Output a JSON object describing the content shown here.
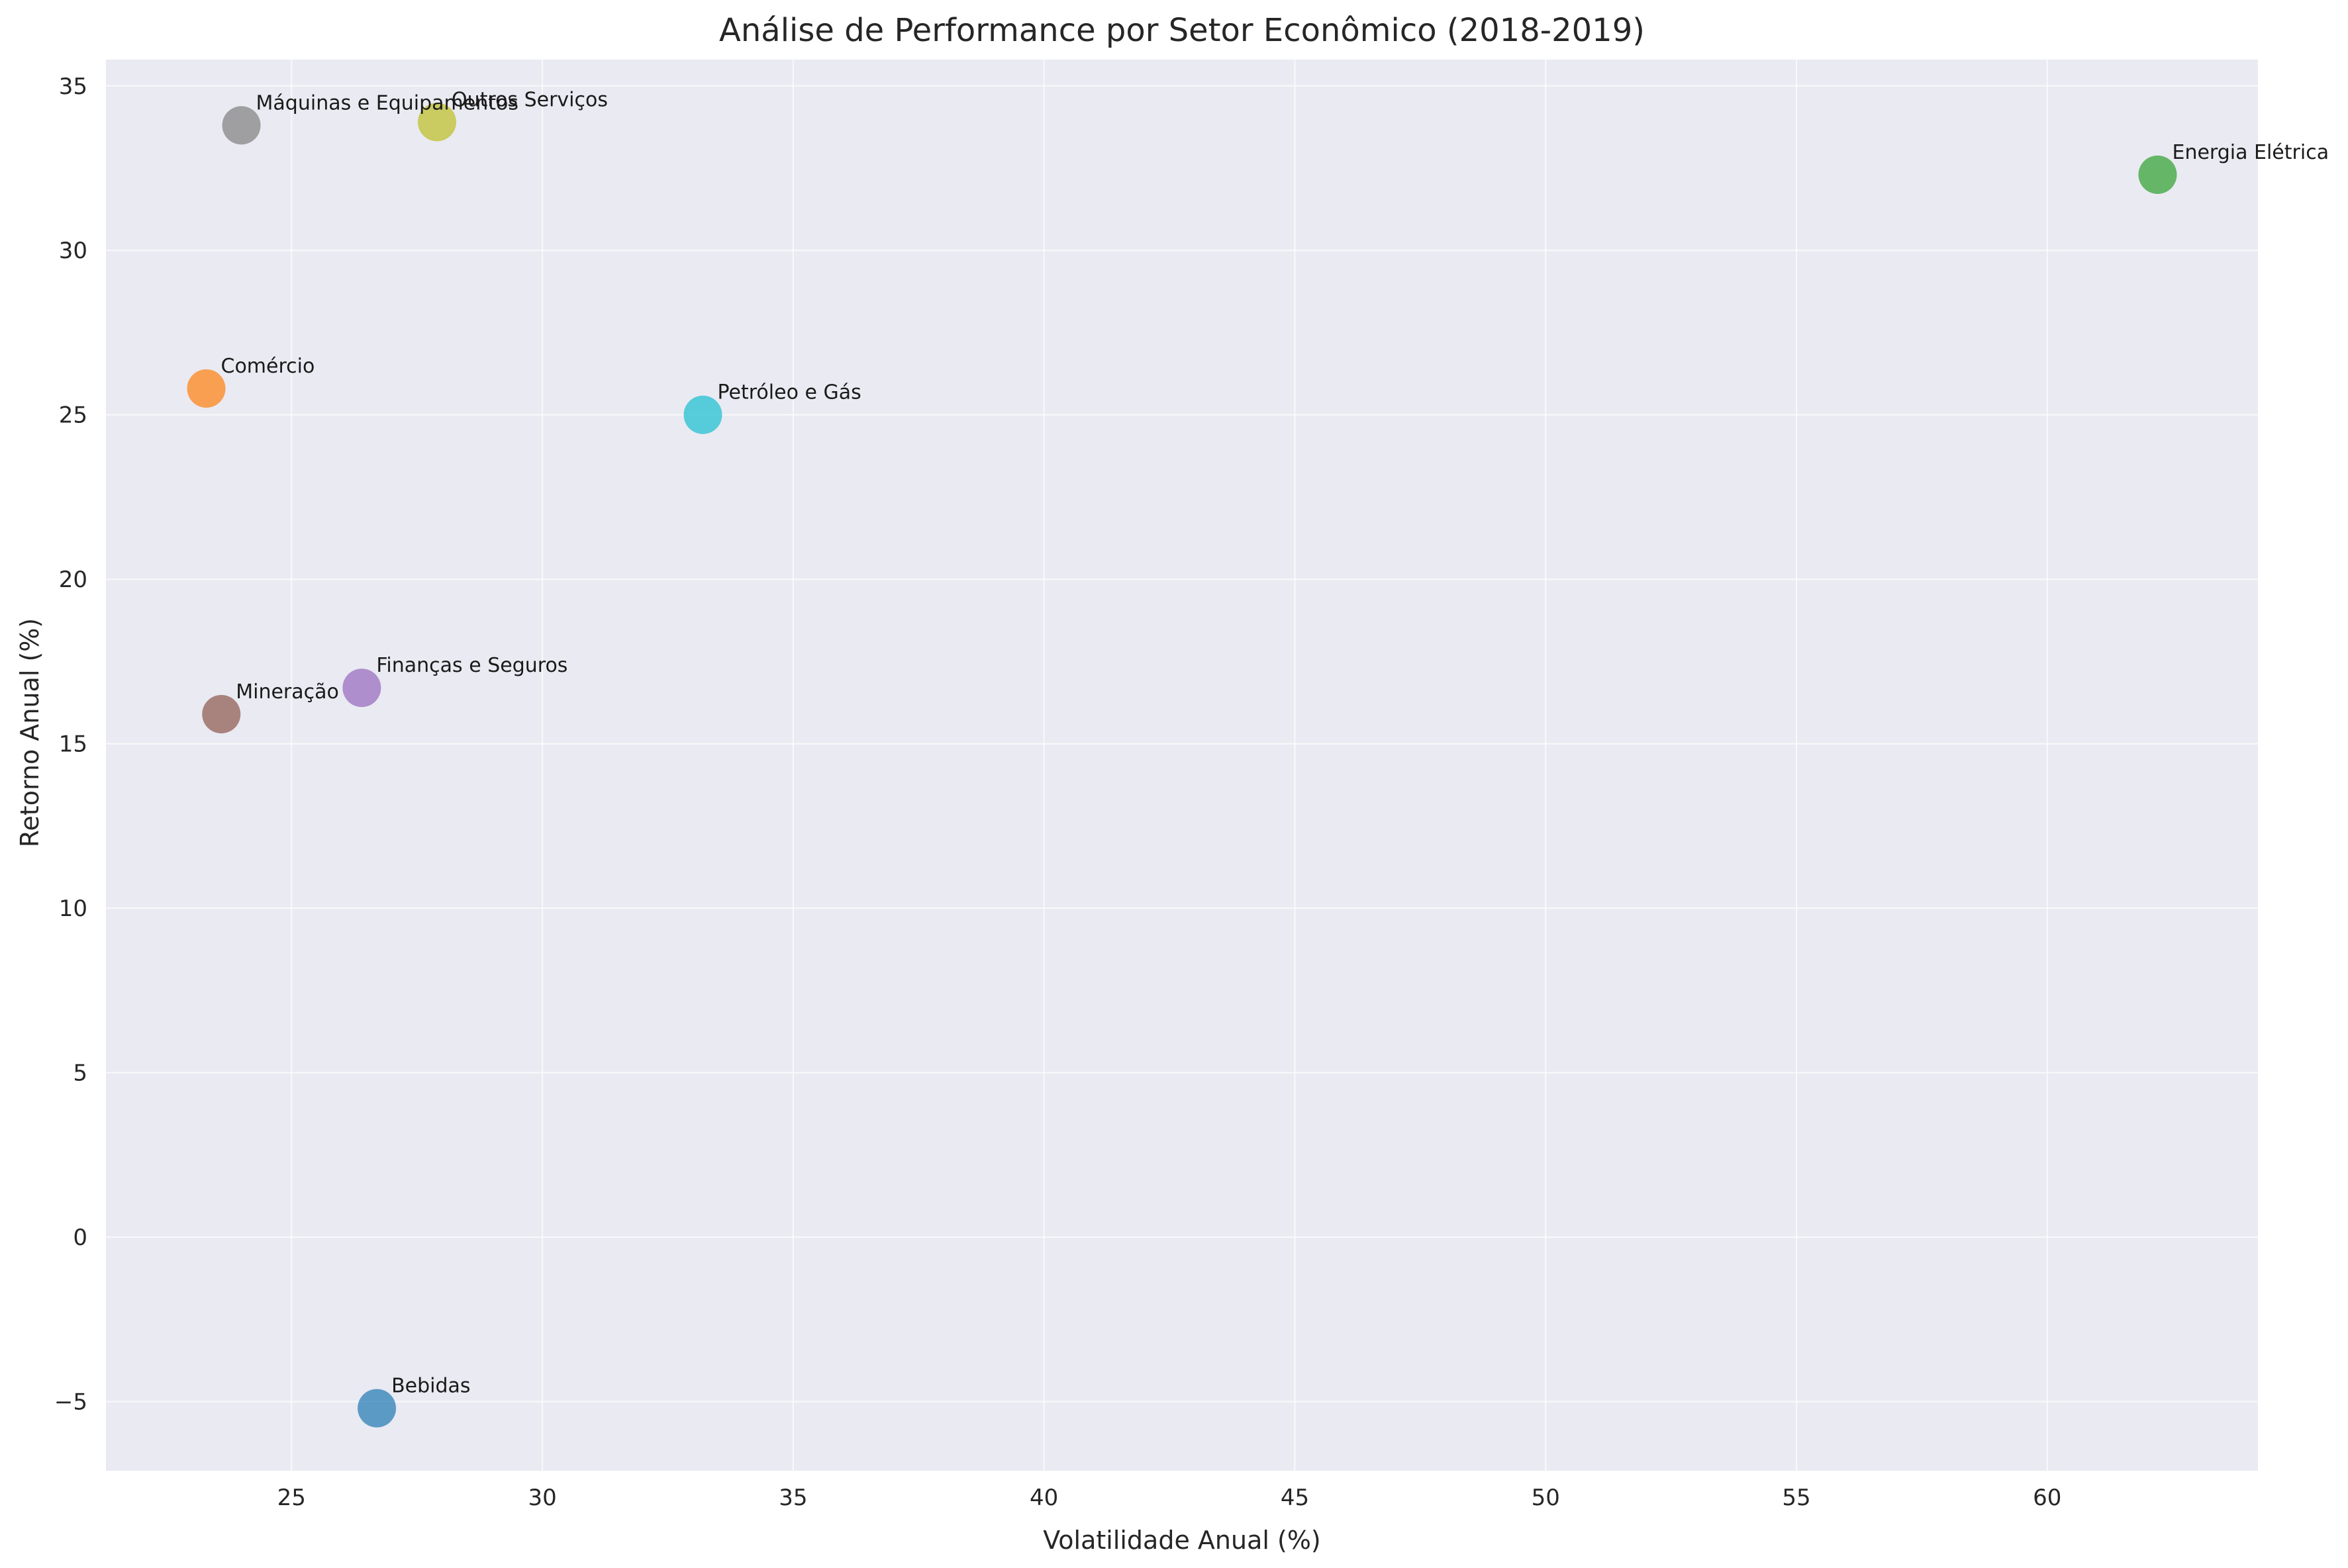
{
  "chart_data": {
    "type": "scatter",
    "title": "Análise de Performance por Setor Econômico (2018-2019)",
    "xlabel": "Volatilidade Anual (%)",
    "ylabel": "Retorno Anual (%)",
    "xlim": [
      21.3,
      64.2
    ],
    "ylim": [
      -7.1,
      35.8
    ],
    "xticks": [
      25,
      30,
      35,
      40,
      45,
      50,
      55,
      60
    ],
    "yticks": [
      -5,
      0,
      5,
      10,
      15,
      20,
      25,
      30,
      35
    ],
    "ytick_labels": [
      "−5",
      "0",
      "5",
      "10",
      "15",
      "20",
      "25",
      "30",
      "35"
    ],
    "grid": true,
    "background": "#eaeaf2",
    "grid_color": "#ffffff",
    "points": [
      {
        "label": "Bebidas",
        "x": 26.7,
        "y": -5.2,
        "color": "#1f77b4"
      },
      {
        "label": "Comércio",
        "x": 23.3,
        "y": 25.8,
        "color": "#ff7f0e"
      },
      {
        "label": "Energia Elétrica",
        "x": 62.2,
        "y": 32.3,
        "color": "#2ca02c"
      },
      {
        "label": "Finanças e Seguros",
        "x": 26.4,
        "y": 16.7,
        "color": "#9467bd"
      },
      {
        "label": "Máquinas e Equipamentos",
        "x": 24.0,
        "y": 33.8,
        "color": "#7f7f7f"
      },
      {
        "label": "Mineração",
        "x": 23.6,
        "y": 15.9,
        "color": "#8c564b"
      },
      {
        "label": "Outros Serviços",
        "x": 27.9,
        "y": 33.9,
        "color": "#bcbd22"
      },
      {
        "label": "Petróleo e Gás",
        "x": 33.2,
        "y": 25.0,
        "color": "#17becf"
      }
    ]
  }
}
